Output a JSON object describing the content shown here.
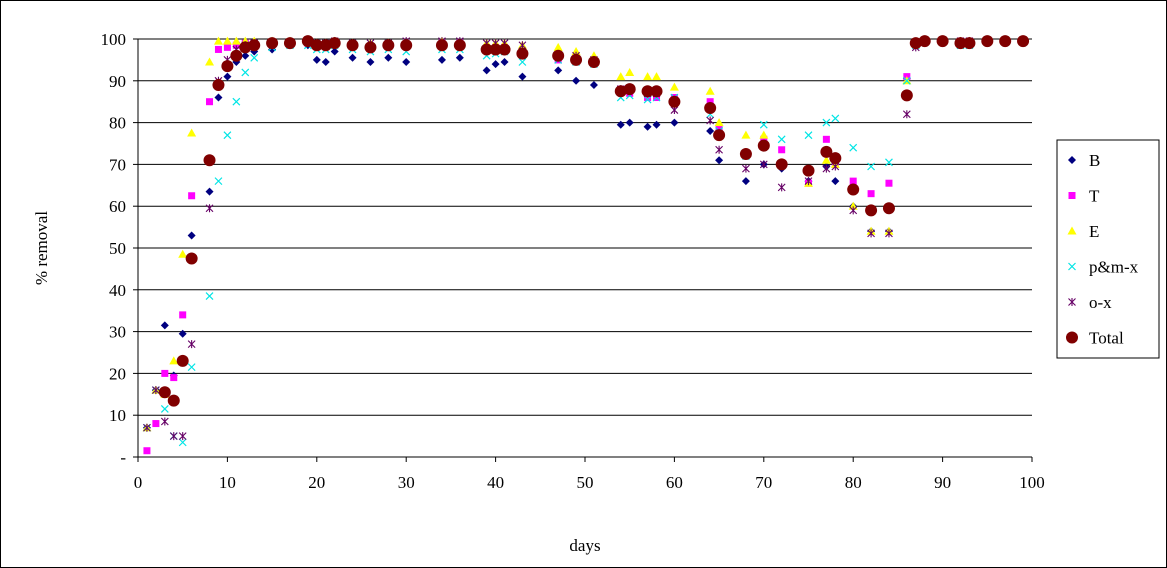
{
  "chart_data": {
    "type": "scatter",
    "xlabel": "days",
    "ylabel": "% removal",
    "xlim": [
      0,
      100
    ],
    "ylim": [
      0,
      100
    ],
    "x_ticks": [
      "0",
      "10",
      "20",
      "30",
      "40",
      "50",
      "60",
      "70",
      "80",
      "90",
      "100"
    ],
    "y_ticks": [
      "-",
      "10",
      "20",
      "30",
      "40",
      "50",
      "60",
      "70",
      "80",
      "90",
      "100"
    ],
    "grid": "horizontal",
    "legend_position": "right",
    "series": [
      {
        "name": "B",
        "marker": "diamond",
        "color": "#000080",
        "x": [
          1,
          2,
          3,
          4,
          5,
          6,
          8,
          9,
          10,
          11,
          12,
          13,
          15,
          17,
          19,
          20,
          21,
          22,
          24,
          26,
          28,
          30,
          34,
          36,
          39,
          40,
          41,
          43,
          47,
          49,
          51,
          54,
          55,
          57,
          58,
          60,
          64,
          65,
          68,
          70,
          72,
          75,
          77,
          78,
          80,
          82,
          84,
          86,
          87,
          88,
          90,
          92,
          93,
          95,
          97,
          99
        ],
        "y": [
          7,
          16,
          31.5,
          19.5,
          29.5,
          53,
          63.5,
          86,
          91,
          94.5,
          96,
          97,
          97.5,
          98.5,
          98.5,
          95,
          94.5,
          97,
          95.5,
          94.5,
          95.5,
          94.5,
          95,
          95.5,
          92.5,
          94,
          94.5,
          91,
          92.5,
          90,
          89,
          79.5,
          80,
          79,
          79.5,
          80,
          78,
          71,
          66,
          70,
          69,
          66,
          69.5,
          66,
          60,
          54,
          54,
          90.5,
          98.5,
          99.5,
          99.5,
          99,
          99,
          99.5,
          99.5,
          99.5
        ]
      },
      {
        "name": "T",
        "marker": "square",
        "color": "#ff00ff",
        "x": [
          1,
          2,
          3,
          4,
          5,
          6,
          8,
          9,
          10,
          11,
          12,
          13,
          15,
          17,
          19,
          20,
          21,
          22,
          24,
          26,
          28,
          30,
          34,
          36,
          39,
          40,
          41,
          43,
          47,
          49,
          51,
          54,
          55,
          57,
          58,
          60,
          64,
          65,
          68,
          70,
          72,
          75,
          77,
          78,
          80,
          82,
          84,
          86,
          87,
          88,
          90,
          92,
          93,
          95,
          97,
          99
        ],
        "y": [
          1.5,
          8,
          20,
          19,
          34,
          62.5,
          85,
          97.5,
          98,
          98.5,
          99,
          99,
          99,
          99,
          99,
          98.5,
          98.5,
          99,
          98.5,
          98,
          98.5,
          98.5,
          99,
          99,
          97.5,
          98,
          98,
          97,
          95,
          96,
          95,
          88,
          87,
          86,
          86,
          86,
          85,
          78.5,
          72.5,
          76,
          73.5,
          65.5,
          76,
          70,
          66,
          63,
          65.5,
          91,
          99,
          99.5,
          99.5,
          99.5,
          99.5,
          99.5,
          99.5,
          99.5
        ]
      },
      {
        "name": "E",
        "marker": "triangle",
        "color": "#ffff00",
        "x": [
          1,
          2,
          3,
          4,
          5,
          6,
          8,
          9,
          10,
          11,
          12,
          13,
          15,
          17,
          19,
          20,
          21,
          22,
          24,
          26,
          28,
          30,
          34,
          36,
          39,
          40,
          41,
          43,
          47,
          49,
          51,
          54,
          55,
          57,
          58,
          60,
          64,
          65,
          68,
          70,
          72,
          75,
          77,
          78,
          80,
          82,
          84,
          86,
          87,
          88,
          90,
          92,
          93,
          95,
          97,
          99
        ],
        "y": [
          7,
          16,
          15,
          23,
          48.5,
          77.5,
          94.5,
          99.5,
          99.5,
          99.5,
          99.5,
          99.5,
          99.5,
          99.5,
          99.5,
          99,
          99,
          99.5,
          99,
          99,
          99,
          99,
          99.5,
          99,
          99,
          99,
          99,
          98.5,
          98,
          97,
          96,
          91,
          92,
          91,
          91,
          88.5,
          87.5,
          80,
          77,
          77,
          70,
          65.5,
          71,
          70,
          60,
          54,
          54,
          90,
          99,
          99.5,
          99.5,
          99.5,
          99.5,
          99.5,
          99.5,
          99.5
        ]
      },
      {
        "name": "p&m-x",
        "marker": "x",
        "color": "#00e5e5",
        "x": [
          1,
          2,
          3,
          4,
          5,
          6,
          8,
          9,
          10,
          11,
          12,
          13,
          15,
          17,
          19,
          20,
          21,
          22,
          24,
          26,
          28,
          30,
          34,
          36,
          39,
          40,
          41,
          43,
          47,
          49,
          51,
          54,
          55,
          57,
          58,
          60,
          64,
          65,
          68,
          70,
          72,
          75,
          77,
          78,
          80,
          82,
          84,
          86,
          87,
          88,
          90,
          92,
          93,
          95,
          97,
          99
        ],
        "y": [
          7,
          16,
          11.5,
          5,
          3.5,
          21.5,
          38.5,
          66,
          77,
          85,
          92,
          95.5,
          98,
          98.5,
          98.5,
          97.5,
          97.5,
          98.5,
          97.5,
          97,
          97.5,
          97,
          97.5,
          97.5,
          96,
          96.5,
          97,
          94.5,
          95,
          94.5,
          94,
          86,
          86.5,
          85.5,
          86,
          86,
          82,
          78,
          72,
          79.5,
          76,
          77,
          80,
          81,
          74,
          69.5,
          70.5,
          90,
          98.5,
          99.5,
          99.5,
          98.5,
          98.5,
          99.5,
          99.5,
          99.5
        ]
      },
      {
        "name": "o-x",
        "marker": "star",
        "color": "#660066",
        "x": [
          1,
          2,
          3,
          4,
          5,
          6,
          8,
          9,
          10,
          11,
          12,
          13,
          15,
          17,
          19,
          20,
          21,
          22,
          24,
          26,
          28,
          30,
          34,
          36,
          39,
          40,
          41,
          43,
          47,
          49,
          51,
          54,
          55,
          57,
          58,
          60,
          64,
          65,
          68,
          70,
          72,
          75,
          77,
          78,
          80,
          82,
          84,
          86,
          87,
          88,
          90,
          92,
          93,
          95,
          97,
          99
        ],
        "y": [
          7,
          16,
          8.5,
          5,
          5,
          27,
          59.5,
          90,
          95,
          97.5,
          98.5,
          99,
          99,
          99,
          99.5,
          99,
          99,
          99.5,
          99,
          99,
          99,
          99.5,
          99.5,
          99.5,
          99,
          99,
          99,
          98.5,
          96,
          96,
          95,
          88,
          88,
          87,
          87,
          83,
          80.5,
          73.5,
          69,
          70,
          64.5,
          66,
          69,
          69.5,
          59,
          53.5,
          53.5,
          82,
          98,
          99.5,
          99.5,
          99.5,
          99.5,
          99.5,
          99.5,
          99.5
        ]
      },
      {
        "name": "Total",
        "marker": "circle",
        "color": "#800000",
        "x": [
          3,
          4,
          5,
          6,
          8,
          9,
          10,
          11,
          12,
          13,
          15,
          17,
          19,
          20,
          21,
          22,
          24,
          26,
          28,
          30,
          34,
          36,
          39,
          40,
          41,
          43,
          47,
          49,
          51,
          54,
          55,
          57,
          58,
          60,
          64,
          65,
          68,
          70,
          72,
          75,
          77,
          78,
          80,
          82,
          84,
          86,
          87,
          88,
          90,
          92,
          93,
          95,
          97,
          99
        ],
        "y": [
          15.5,
          13.5,
          23,
          47.5,
          71,
          89,
          93.5,
          96,
          98,
          98.5,
          99,
          99,
          99.5,
          98.5,
          98.5,
          99,
          98.5,
          98,
          98.5,
          98.5,
          98.5,
          98.5,
          97.5,
          97.5,
          97.5,
          96.5,
          96,
          95,
          94.5,
          87.5,
          88,
          87.5,
          87.5,
          85,
          83.5,
          77,
          72.5,
          74.5,
          70,
          68.5,
          73,
          71.5,
          64,
          59,
          59.5,
          86.5,
          99,
          99.5,
          99.5,
          99,
          99,
          99.5,
          99.5,
          99.5
        ]
      }
    ]
  }
}
